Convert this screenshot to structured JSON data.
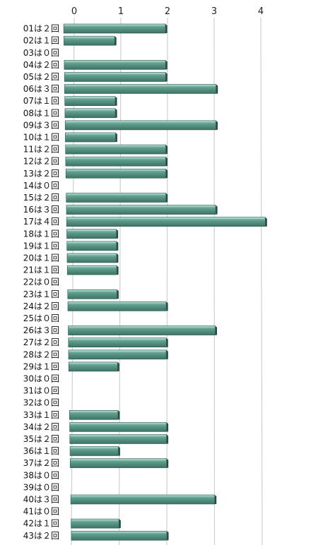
{
  "chart_data": {
    "type": "bar",
    "orientation": "horizontal",
    "categories": [
      "01は２回",
      "02は１回",
      "03は０回",
      "04は２回",
      "05は２回",
      "06は３回",
      "07は１回",
      "08は１回",
      "09は３回",
      "10は１回",
      "11は２回",
      "12は２回",
      "13は２回",
      "14は０回",
      "15は２回",
      "16は３回",
      "17は４回",
      "18は１回",
      "19は１回",
      "20は１回",
      "21は１回",
      "22は０回",
      "23は１回",
      "24は２回",
      "25は０回",
      "26は３回",
      "27は２回",
      "28は２回",
      "29は１回",
      "30は０回",
      "31は０回",
      "32は０回",
      "33は１回",
      "34は２回",
      "35は２回",
      "36は１回",
      "37は２回",
      "38は０回",
      "39は０回",
      "40は３回",
      "41は０回",
      "42は１回",
      "43は２回"
    ],
    "values": [
      2,
      1,
      0,
      2,
      2,
      3,
      1,
      1,
      3,
      1,
      2,
      2,
      2,
      0,
      2,
      3,
      4,
      1,
      1,
      1,
      1,
      0,
      1,
      2,
      0,
      3,
      2,
      2,
      1,
      0,
      0,
      0,
      1,
      2,
      2,
      1,
      2,
      0,
      0,
      3,
      0,
      1,
      2
    ],
    "xticks": [
      "0",
      "1",
      "2",
      "3",
      "4"
    ],
    "xlim": [
      0,
      4
    ],
    "grid": true,
    "colors": {
      "bar": "#5a9a8a",
      "bar_light": "#8cc6b5",
      "bar_dark": "#2f5f54",
      "grid": "#cfcfcf"
    }
  }
}
